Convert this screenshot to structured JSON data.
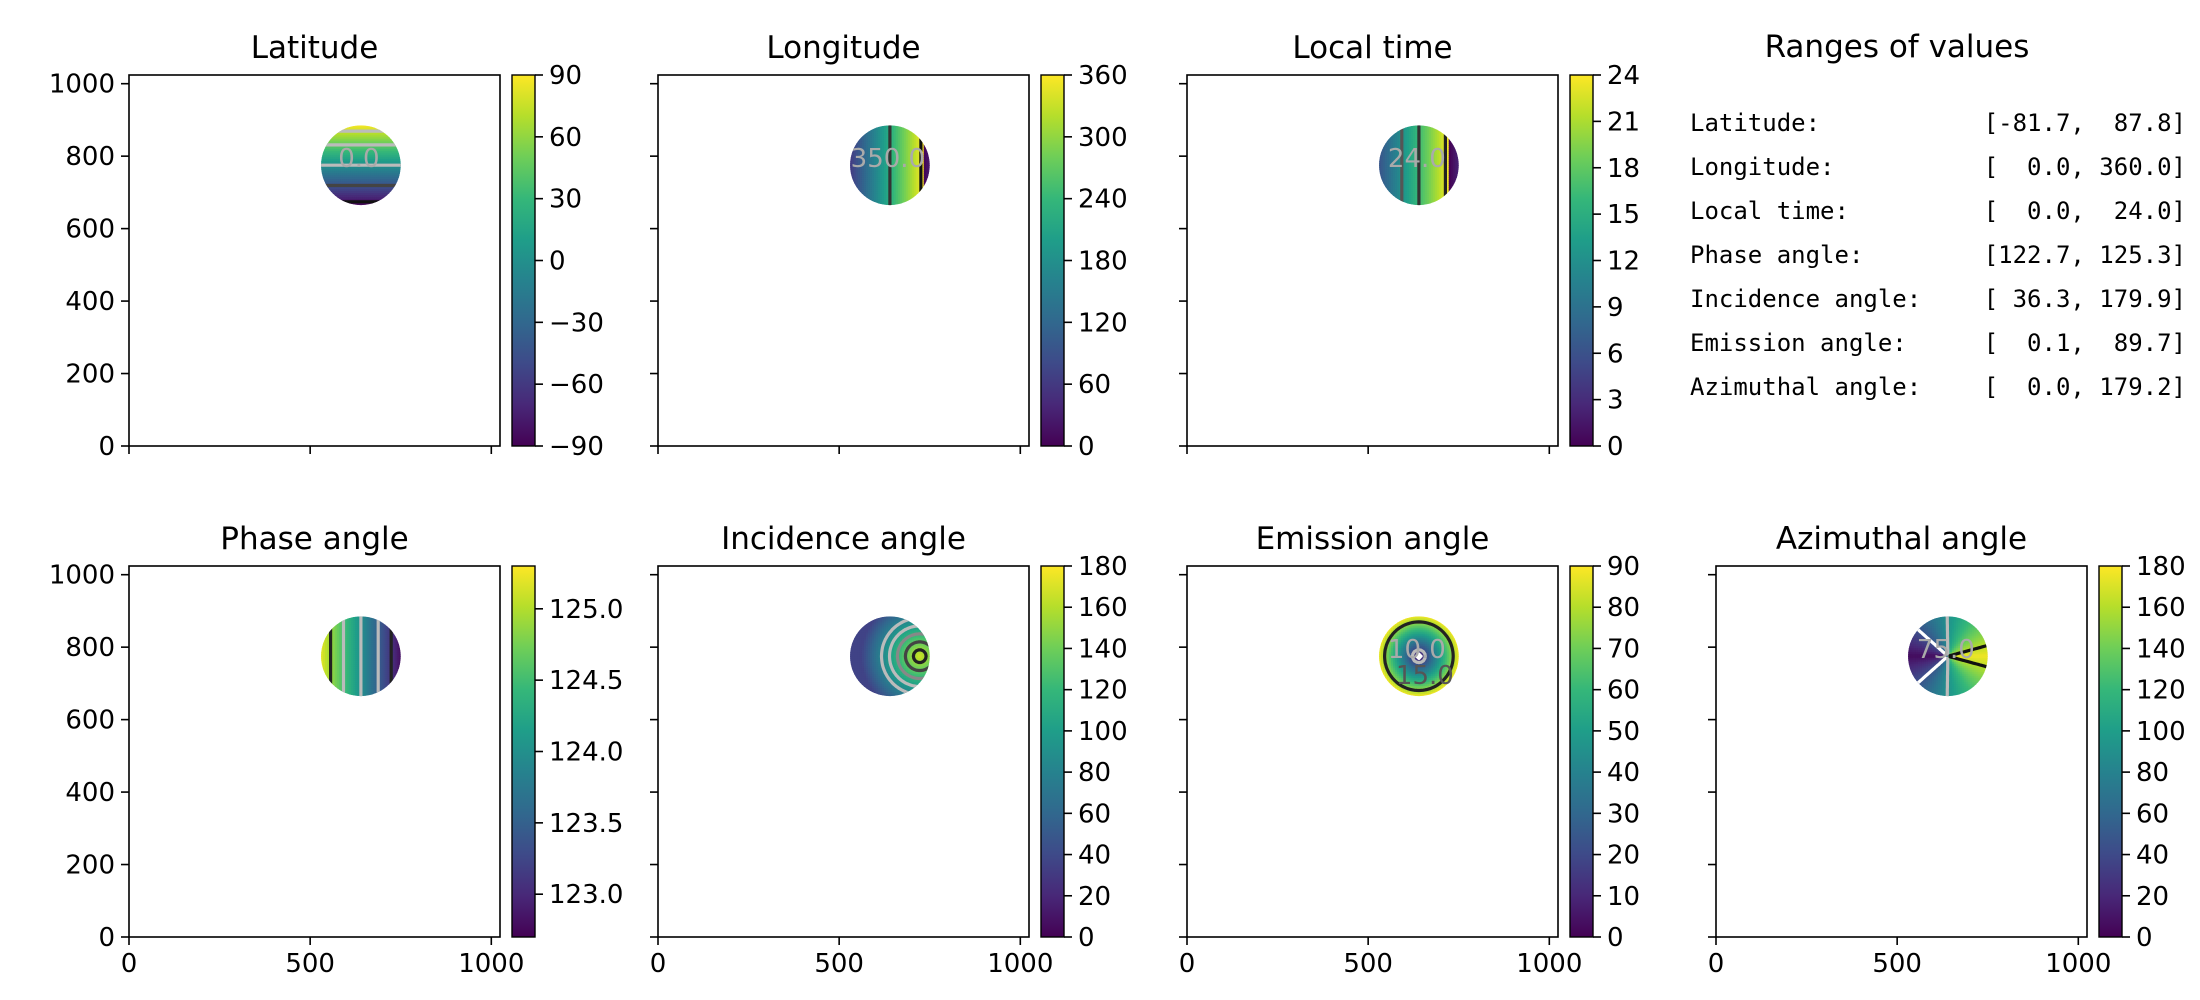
{
  "chart_data": {
    "type": "heatmap",
    "colormap": [
      "#440154",
      "#482878",
      "#3e4a89",
      "#31688e",
      "#26828e",
      "#1f9e89",
      "#35b779",
      "#6ece58",
      "#b5de2b",
      "#fde725"
    ],
    "x_ticks": [
      "0",
      "500",
      "1000"
    ],
    "y_ticks": [
      "0",
      "200",
      "400",
      "600",
      "800",
      "1000"
    ],
    "xlim": [
      0,
      1024
    ],
    "ylim": [
      0,
      1024
    ],
    "disc": {
      "center_x": 640,
      "center_y": 775,
      "radius": 110
    },
    "panels": [
      {
        "title": "Latitude",
        "vmin": -90,
        "vmax": 90,
        "colorbar_ticks": [
          "90",
          "60",
          "30",
          "0",
          "−30",
          "−60",
          "−90"
        ],
        "contour_labels": [
          "0.0"
        ],
        "field": "lat"
      },
      {
        "title": "Longitude",
        "vmin": 0,
        "vmax": 360,
        "colorbar_ticks": [
          "360",
          "300",
          "240",
          "180",
          "120",
          "60",
          "0"
        ],
        "contour_labels": [
          "350.0"
        ],
        "field": "lon"
      },
      {
        "title": "Local time",
        "vmin": 0,
        "vmax": 24,
        "colorbar_ticks": [
          "24",
          "21",
          "18",
          "15",
          "12",
          "9",
          "6",
          "3",
          "0"
        ],
        "contour_labels": [
          "24.0"
        ],
        "field": "lt"
      },
      {
        "title": "Phase angle",
        "vmin": 122.7,
        "vmax": 125.3,
        "colorbar_ticks": [
          "125.0",
          "124.5",
          "124.0",
          "123.5",
          "123.0"
        ],
        "contour_labels": [],
        "field": "phase"
      },
      {
        "title": "Incidence angle",
        "vmin": 0,
        "vmax": 180,
        "colorbar_ticks": [
          "180",
          "160",
          "140",
          "120",
          "100",
          "80",
          "60",
          "40",
          "20",
          "0"
        ],
        "contour_labels": [],
        "field": "inc"
      },
      {
        "title": "Emission angle",
        "vmin": 0,
        "vmax": 90,
        "colorbar_ticks": [
          "90",
          "80",
          "70",
          "60",
          "50",
          "40",
          "30",
          "20",
          "10",
          "0"
        ],
        "contour_labels": [
          "10.0",
          "15.0"
        ],
        "field": "emi"
      },
      {
        "title": "Azimuthal angle",
        "vmin": 0,
        "vmax": 180,
        "colorbar_ticks": [
          "180",
          "160",
          "140",
          "120",
          "100",
          "80",
          "60",
          "40",
          "20",
          "0"
        ],
        "contour_labels": [
          "75.0"
        ],
        "field": "azi"
      }
    ],
    "ranges": {
      "title": "Ranges of values",
      "rows": [
        {
          "label": "Latitude:",
          "value": "[-81.7,  87.8]"
        },
        {
          "label": "Longitude:",
          "value": "[  0.0, 360.0]"
        },
        {
          "label": "Local time:",
          "value": "[  0.0,  24.0]"
        },
        {
          "label": "Phase angle:",
          "value": "[122.7, 125.3]"
        },
        {
          "label": "Incidence angle:",
          "value": "[ 36.3, 179.9]"
        },
        {
          "label": "Emission angle:",
          "value": "[  0.1,  89.7]"
        },
        {
          "label": "Azimuthal angle:",
          "value": "[  0.0, 179.2]"
        }
      ]
    }
  }
}
